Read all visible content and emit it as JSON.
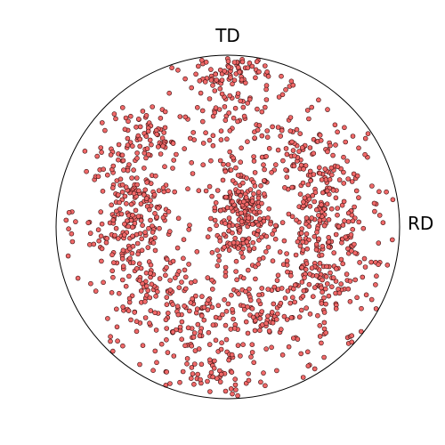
{
  "chart_data": {
    "type": "scatter",
    "title": "",
    "projection": "pole-figure",
    "x_range": [
      -1,
      1
    ],
    "y_range": [
      -1,
      1
    ],
    "axis_labels": {
      "top": "TD",
      "right": "RD"
    },
    "grid": false,
    "legend": "none",
    "clusters": [
      {
        "name": "",
        "cx": 0.08,
        "cy": 0.06,
        "sx": 0.09,
        "sy": 0.14,
        "n": 200
      },
      {
        "name": "",
        "cx": -0.56,
        "cy": 0.04,
        "sx": 0.12,
        "sy": 0.2,
        "n": 210
      },
      {
        "name": "",
        "cx": 0.55,
        "cy": 0.0,
        "sx": 0.13,
        "sy": 0.2,
        "n": 200
      },
      {
        "name": "",
        "cx": -0.44,
        "cy": 0.55,
        "sx": 0.14,
        "sy": 0.1,
        "n": 60
      },
      {
        "name": "",
        "cx": 0.38,
        "cy": 0.45,
        "sx": 0.16,
        "sy": 0.1,
        "n": 70
      },
      {
        "name": "",
        "cx": -0.22,
        "cy": -0.6,
        "sx": 0.16,
        "sy": 0.13,
        "n": 85
      },
      {
        "name": "",
        "cx": 0.22,
        "cy": -0.5,
        "sx": 0.15,
        "sy": 0.13,
        "n": 80
      },
      {
        "name": "",
        "cx": -0.38,
        "cy": -0.35,
        "sx": 0.12,
        "sy": 0.1,
        "n": 55
      },
      {
        "name": "",
        "cx": 0.52,
        "cy": -0.35,
        "sx": 0.12,
        "sy": 0.12,
        "n": 55
      },
      {
        "name": "",
        "cx": 0.02,
        "cy": 0.7,
        "sx": 0.12,
        "sy": 0.12,
        "n": 60
      },
      {
        "name": "",
        "cx": 0.05,
        "cy": 0.92,
        "sx": 0.1,
        "sy": 0.04,
        "n": 40
      },
      {
        "name": "",
        "cx": -0.05,
        "cy": -0.9,
        "sx": 0.12,
        "sy": 0.05,
        "n": 30
      }
    ],
    "uniform_background_points": 300,
    "marker": {
      "fill": "#f06868",
      "stroke": "#3a1010"
    },
    "circle_stroke": "#000000"
  }
}
